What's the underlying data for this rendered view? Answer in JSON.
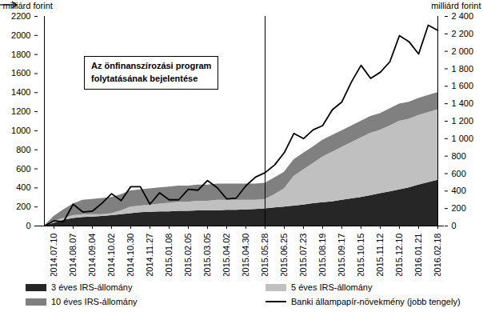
{
  "chart_data": {
    "type": "area",
    "stacked": true,
    "ylabel": "milliárd forint",
    "y2label": "milliárd forint",
    "categories": [
      null,
      "2014.07.10",
      null,
      "2014.08.07",
      null,
      "2014.09.04",
      null,
      "2014.10.02",
      null,
      "2014.10.30",
      null,
      "2014.11.27",
      null,
      "2015.01.08",
      null,
      "2015.02.05",
      null,
      "2015.03.05",
      null,
      "2015.04.02",
      null,
      "2015.04.30",
      null,
      "2015.05.28",
      null,
      "2015.06.25",
      null,
      "2015.07.23",
      null,
      "2015.08.19",
      null,
      "2015.09.17",
      null,
      "2015.10.15",
      null,
      "2015.11.12",
      null,
      "2015.12.10",
      null,
      "2016.01.21",
      null,
      "2016.02.18"
    ],
    "ylim": [
      0,
      2200
    ],
    "yticks": [
      0,
      200,
      400,
      600,
      800,
      1000,
      1200,
      1400,
      1600,
      1800,
      2000,
      2200
    ],
    "y2lim": [
      0,
      2400
    ],
    "y2ticks": [
      0,
      200,
      400,
      600,
      800,
      {
        "value": 1000,
        "label": "1 000"
      },
      {
        "value": 1200,
        "label": "1 200"
      },
      {
        "value": 1400,
        "label": "1 400"
      },
      {
        "value": 1600,
        "label": "1 600"
      },
      {
        "value": 1800,
        "label": "1 800"
      },
      {
        "value": 2000,
        "label": "2 000"
      },
      {
        "value": 2200,
        "label": "2 200"
      },
      {
        "value": 2400,
        "label": "2 400"
      }
    ],
    "legend": "bottom",
    "series": [
      {
        "name": "3 éves IRS-állomány",
        "type": "area",
        "color": "#262626",
        "values": [
          0,
          30,
          60,
          80,
          90,
          95,
          100,
          110,
          120,
          130,
          140,
          145,
          150,
          150,
          155,
          155,
          160,
          160,
          160,
          165,
          165,
          170,
          175,
          180,
          190,
          200,
          210,
          220,
          235,
          245,
          255,
          270,
          285,
          300,
          320,
          340,
          360,
          380,
          400,
          430,
          455,
          480
        ]
      },
      {
        "name": "5 éves IRS-állomány",
        "type": "area",
        "color": "#c0c0c0",
        "values": [
          0,
          20,
          20,
          30,
          30,
          25,
          20,
          20,
          40,
          70,
          70,
          75,
          80,
          90,
          95,
          95,
          100,
          100,
          110,
          105,
          105,
          100,
          95,
          100,
          140,
          190,
          310,
          370,
          420,
          480,
          520,
          555,
          590,
          625,
          655,
          665,
          690,
          720,
          720,
          730,
          735,
          740
        ]
      },
      {
        "name": "10 éves IRS-állomány",
        "type": "area",
        "color": "#808080",
        "values": [
          0,
          50,
          90,
          120,
          150,
          160,
          170,
          170,
          170,
          170,
          170,
          170,
          170,
          170,
          170,
          170,
          170,
          170,
          170,
          170,
          170,
          170,
          170,
          170,
          175,
          175,
          175,
          175,
          175,
          175,
          175,
          175,
          175,
          175,
          175,
          175,
          180,
          180,
          180,
          180,
          180,
          180
        ]
      },
      {
        "name": "Banki állampapír-növekmény (jobb tengely)",
        "type": "line",
        "axis": "y2",
        "color": "#000000",
        "values": [
          0,
          60,
          50,
          250,
          160,
          170,
          260,
          370,
          290,
          450,
          450,
          250,
          380,
          300,
          300,
          420,
          410,
          520,
          440,
          310,
          320,
          460,
          560,
          610,
          700,
          840,
          1060,
          1000,
          1100,
          1150,
          1330,
          1420,
          1650,
          1840,
          1690,
          1760,
          1880,
          2180,
          2110,
          1970,
          2300,
          2240
        ]
      }
    ],
    "annotations": [
      {
        "text": [
          "Az önfinanszírozási program",
          "folytatásának bejelentése"
        ],
        "x": "2015.05.28"
      }
    ]
  }
}
